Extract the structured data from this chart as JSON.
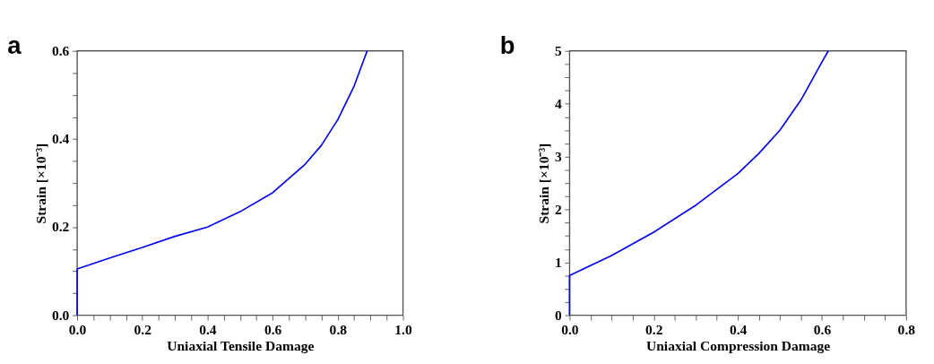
{
  "chart_data": [
    {
      "type": "line",
      "annotations": [
        "a"
      ],
      "xlabel": "Uniaxial Tensile Damage",
      "ylabel": "Strain [×10⁻³]",
      "grid": false,
      "marker": "none",
      "line_style": "solid",
      "x": [
        0,
        0,
        0.1,
        0.2,
        0.3,
        0.4,
        0.5,
        0.6,
        0.7,
        0.75,
        0.8,
        0.85,
        0.89
      ],
      "series": [
        {
          "color": "#0000ee",
          "values": [
            0,
            0.105,
            0.13,
            0.154,
            0.179,
            0.2,
            0.235,
            0.278,
            0.343,
            0.386,
            0.444,
            0.52,
            0.6
          ]
        }
      ],
      "xlim": [
        0,
        1.0
      ],
      "ylim": [
        0,
        0.6
      ],
      "xticks": [
        {
          "value": 0,
          "label": "0.0"
        },
        {
          "value": 0.05,
          "label": null
        },
        {
          "value": 0.1,
          "label": null
        },
        {
          "value": 0.15,
          "label": null
        },
        {
          "value": 0.2,
          "label": "0.2"
        },
        {
          "value": 0.25,
          "label": null
        },
        {
          "value": 0.3,
          "label": null
        },
        {
          "value": 0.35,
          "label": null
        },
        {
          "value": 0.4,
          "label": "0.4"
        },
        {
          "value": 0.45,
          "label": null
        },
        {
          "value": 0.5,
          "label": null
        },
        {
          "value": 0.55,
          "label": null
        },
        {
          "value": 0.6,
          "label": "0.6"
        },
        {
          "value": 0.65,
          "label": null
        },
        {
          "value": 0.7,
          "label": null
        },
        {
          "value": 0.75,
          "label": null
        },
        {
          "value": 0.8,
          "label": "0.8"
        },
        {
          "value": 0.85,
          "label": null
        },
        {
          "value": 0.9,
          "label": null
        },
        {
          "value": 0.95,
          "label": null
        },
        {
          "value": 1.0,
          "label": "1.0"
        }
      ],
      "yticks": [
        {
          "value": 0,
          "label": "0.0"
        },
        {
          "value": 0.05,
          "label": null
        },
        {
          "value": 0.1,
          "label": null
        },
        {
          "value": 0.15,
          "label": null
        },
        {
          "value": 0.2,
          "label": "0.2"
        },
        {
          "value": 0.25,
          "label": null
        },
        {
          "value": 0.3,
          "label": null
        },
        {
          "value": 0.35,
          "label": null
        },
        {
          "value": 0.4,
          "label": "0.4"
        },
        {
          "value": 0.45,
          "label": null
        },
        {
          "value": 0.5,
          "label": null
        },
        {
          "value": 0.55,
          "label": null
        },
        {
          "value": 0.6,
          "label": "0.6"
        }
      ]
    },
    {
      "type": "line",
      "annotations": [
        "b"
      ],
      "xlabel": "Uniaxial Compression Damage",
      "ylabel": "Strain [×10⁻³]",
      "grid": false,
      "marker": "none",
      "line_style": "solid",
      "x": [
        0,
        0,
        0.1,
        0.2,
        0.3,
        0.4,
        0.45,
        0.5,
        0.55,
        0.6,
        0.615
      ],
      "series": [
        {
          "color": "#0000ee",
          "values": [
            0,
            0.75,
            1.13,
            1.57,
            2.08,
            2.68,
            3.06,
            3.5,
            4.07,
            4.79,
            5
          ]
        }
      ],
      "xlim": [
        0,
        0.8
      ],
      "ylim": [
        0,
        5
      ],
      "xticks": [
        {
          "value": 0,
          "label": "0.0"
        },
        {
          "value": 0.05,
          "label": null
        },
        {
          "value": 0.1,
          "label": null
        },
        {
          "value": 0.15,
          "label": null
        },
        {
          "value": 0.2,
          "label": "0.2"
        },
        {
          "value": 0.25,
          "label": null
        },
        {
          "value": 0.3,
          "label": null
        },
        {
          "value": 0.35,
          "label": null
        },
        {
          "value": 0.4,
          "label": "0.4"
        },
        {
          "value": 0.45,
          "label": null
        },
        {
          "value": 0.5,
          "label": null
        },
        {
          "value": 0.55,
          "label": null
        },
        {
          "value": 0.6,
          "label": "0.6"
        },
        {
          "value": 0.65,
          "label": null
        },
        {
          "value": 0.7,
          "label": null
        },
        {
          "value": 0.75,
          "label": null
        },
        {
          "value": 0.8,
          "label": "0.8"
        }
      ],
      "yticks": [
        0,
        {
          "value": 0.25,
          "label": null
        },
        {
          "value": 0.5,
          "label": null
        },
        {
          "value": 0.75,
          "label": null
        },
        1,
        {
          "value": 1.25,
          "label": null
        },
        {
          "value": 1.5,
          "label": null
        },
        {
          "value": 1.75,
          "label": null
        },
        2,
        {
          "value": 2.25,
          "label": null
        },
        {
          "value": 2.5,
          "label": null
        },
        {
          "value": 2.75,
          "label": null
        },
        3,
        {
          "value": 3.25,
          "label": null
        },
        {
          "value": 3.5,
          "label": null
        },
        {
          "value": 3.75,
          "label": null
        },
        4,
        {
          "value": 4.25,
          "label": null
        },
        {
          "value": 4.5,
          "label": null
        },
        {
          "value": 4.75,
          "label": null
        },
        5
      ]
    }
  ]
}
